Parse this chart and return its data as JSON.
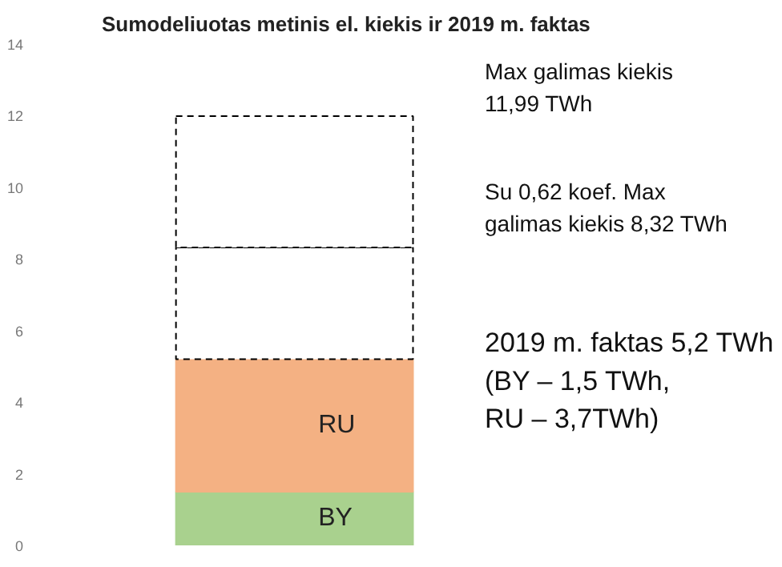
{
  "chart_data": {
    "type": "bar",
    "stacked": true,
    "title": "Sumodeliuotas metinis el. kiekis ir 2019 m. faktas",
    "categories": [
      null
    ],
    "series": [
      {
        "name": "BY",
        "color": "#a9d18e",
        "values": [
          1.5
        ]
      },
      {
        "name": "RU",
        "color": "#f4b183",
        "values": [
          3.7
        ]
      },
      {
        "color": "#ffffff",
        "values": [
          3.12
        ],
        "line_style": "dashed"
      },
      {
        "color": "#ffffff",
        "values": [
          3.67
        ],
        "line_style": "dashed"
      }
    ],
    "ylim": [
      0,
      14
    ],
    "yticks": [
      0,
      2,
      4,
      6,
      8,
      10,
      12,
      14
    ],
    "tick_labels": "y",
    "grid": false,
    "annotations": [
      "Max galimas kiekis\n11,99 TWh",
      "Su 0,62 koef. Max\ngalimas kiekis 8,32 TWh",
      "2019 m. faktas 5,2 TWh\n(BY – 1,5 TWh,\nRU – 3,7TWh)"
    ]
  }
}
